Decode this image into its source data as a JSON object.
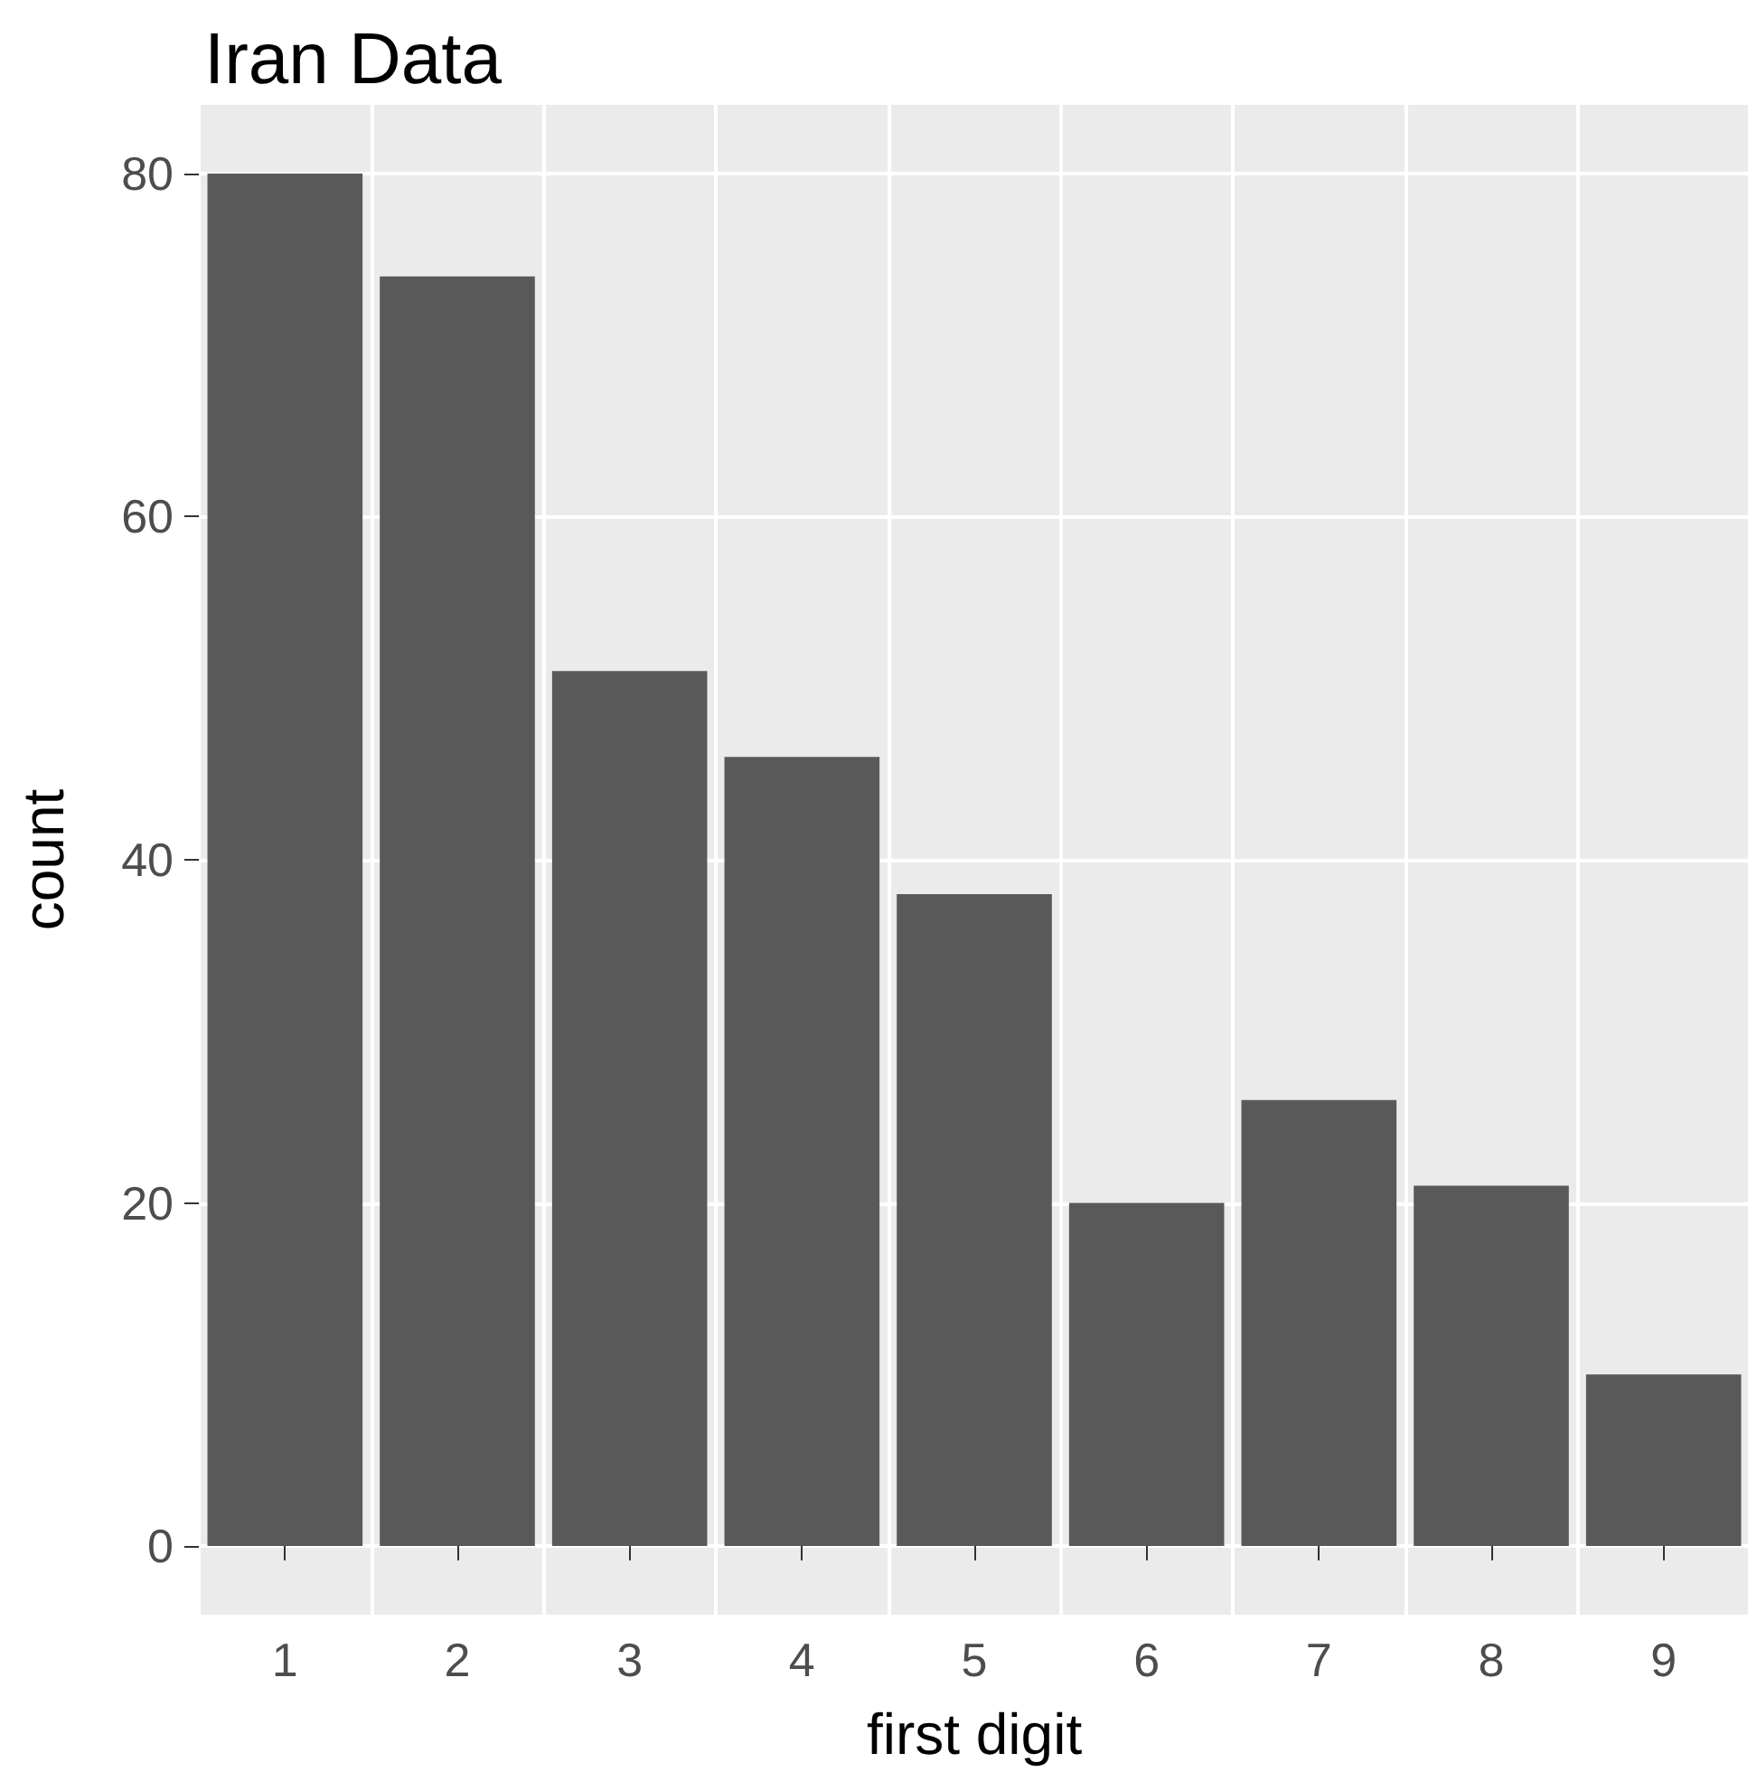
{
  "chart_data": {
    "type": "bar",
    "title": "Iran Data",
    "xlabel": "first digit",
    "ylabel": "count",
    "categories": [
      "1",
      "2",
      "3",
      "4",
      "5",
      "6",
      "7",
      "8",
      "9"
    ],
    "values": [
      80,
      74,
      51,
      46,
      38,
      20,
      26,
      21,
      10
    ],
    "color": "#595959",
    "ylim": [
      -4,
      84
    ],
    "yticks": [
      0,
      20,
      40,
      60,
      80
    ],
    "grid": true
  }
}
